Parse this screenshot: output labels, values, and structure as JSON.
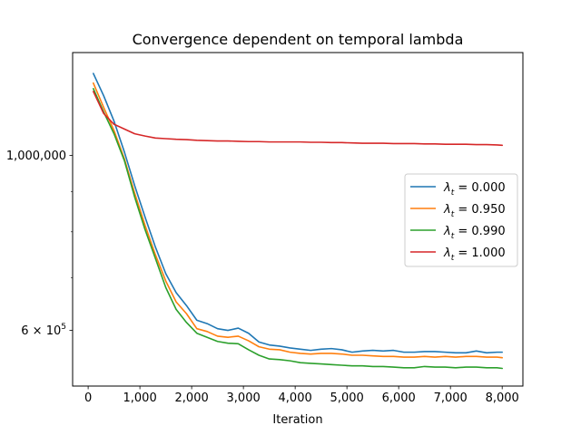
{
  "chart_data": {
    "type": "line",
    "title": "Convergence dependent on temporal lambda",
    "xlabel": "Iteration",
    "ylabel": "",
    "yscale": "log",
    "xlim": [
      -300,
      8400
    ],
    "ylim": [
      510000,
      1350000
    ],
    "xticks": [
      {
        "value": 0,
        "label": "0"
      },
      {
        "value": 1000,
        "label": "1,000"
      },
      {
        "value": 2000,
        "label": "2,000"
      },
      {
        "value": 3000,
        "label": "3,000"
      },
      {
        "value": 4000,
        "label": "4,000"
      },
      {
        "value": 5000,
        "label": "5,000"
      },
      {
        "value": 6000,
        "label": "6,000"
      },
      {
        "value": 7000,
        "label": "7,000"
      },
      {
        "value": 8000,
        "label": "8,000"
      }
    ],
    "yticks": [
      {
        "value": 600000,
        "label": "6 × 10^5",
        "base": "6 × 10",
        "exp": "5"
      },
      {
        "value": 1000000,
        "label": "1,000,000"
      }
    ],
    "yminor": [
      700000,
      800000,
      900000
    ],
    "grid": false,
    "legend_position": "center-right",
    "series": [
      {
        "name": "λt = 0.000",
        "name_main": "λ",
        "name_sub": "t",
        "name_value": " = 0.000",
        "color": "#1f77b4",
        "x": [
          100,
          300,
          500,
          700,
          900,
          1100,
          1300,
          1500,
          1700,
          1900,
          2100,
          2300,
          2500,
          2700,
          2900,
          3100,
          3300,
          3500,
          3700,
          3900,
          4100,
          4300,
          4500,
          4700,
          4900,
          5100,
          5300,
          5500,
          5700,
          5900,
          6100,
          6300,
          6500,
          6700,
          6900,
          7100,
          7300,
          7500,
          7700,
          7900,
          8000
        ],
        "y": [
          1270000,
          1190000,
          1105000,
          1010000,
          915000,
          835000,
          765000,
          708000,
          670000,
          645000,
          618000,
          612000,
          603000,
          600000,
          604000,
          595000,
          580000,
          575000,
          573000,
          570000,
          568000,
          566000,
          568000,
          569000,
          567000,
          563000,
          565000,
          566000,
          565000,
          566000,
          563000,
          563000,
          564000,
          564000,
          563000,
          562000,
          562000,
          565000,
          562000,
          563000,
          563000
        ]
      },
      {
        "name": "λt = 0.950",
        "name_main": "λ",
        "name_sub": "t",
        "name_value": " = 0.950",
        "color": "#ff7f0e",
        "x": [
          100,
          300,
          500,
          700,
          900,
          1100,
          1300,
          1500,
          1700,
          1900,
          2100,
          2300,
          2500,
          2700,
          2900,
          3100,
          3300,
          3500,
          3700,
          3900,
          4100,
          4300,
          4500,
          4700,
          4900,
          5100,
          5300,
          5500,
          5700,
          5900,
          6100,
          6300,
          6500,
          6700,
          6900,
          7100,
          7300,
          7500,
          7700,
          7900,
          8000
        ],
        "y": [
          1235000,
          1150000,
          1075000,
          990000,
          895000,
          815000,
          748000,
          693000,
          652000,
          630000,
          603000,
          598000,
          590000,
          588000,
          590000,
          582000,
          572000,
          568000,
          567000,
          563000,
          561000,
          560000,
          561000,
          561000,
          560000,
          558000,
          558000,
          557000,
          556000,
          556000,
          555000,
          555000,
          556000,
          555000,
          556000,
          555000,
          556000,
          556000,
          555000,
          555000,
          554000
        ]
      },
      {
        "name": "λt = 0.990",
        "name_main": "λ",
        "name_sub": "t",
        "name_value": " = 0.990",
        "color": "#2ca02c",
        "x": [
          100,
          300,
          500,
          700,
          900,
          1100,
          1300,
          1500,
          1700,
          1900,
          2100,
          2300,
          2500,
          2700,
          2900,
          3100,
          3300,
          3500,
          3700,
          3900,
          4100,
          4300,
          4500,
          4700,
          4900,
          5100,
          5300,
          5500,
          5700,
          5900,
          6100,
          6300,
          6500,
          6700,
          6900,
          7100,
          7300,
          7500,
          7700,
          7900,
          8000
        ],
        "y": [
          1215000,
          1135000,
          1065000,
          985000,
          885000,
          805000,
          740000,
          680000,
          638000,
          614000,
          595000,
          588000,
          581000,
          578000,
          577000,
          567000,
          558000,
          552000,
          551000,
          549000,
          546000,
          545000,
          544000,
          543000,
          542000,
          541000,
          541000,
          540000,
          540000,
          539000,
          538000,
          538000,
          540000,
          539000,
          539000,
          538000,
          539000,
          539000,
          538000,
          538000,
          537000
        ]
      },
      {
        "name": "λt = 1.000",
        "name_main": "λ",
        "name_sub": "t",
        "name_value": " = 1.000",
        "color": "#d62728",
        "x": [
          100,
          300,
          500,
          700,
          900,
          1100,
          1300,
          1500,
          1700,
          1900,
          2100,
          2300,
          2500,
          2700,
          2900,
          3100,
          3300,
          3500,
          3700,
          3900,
          4100,
          4300,
          4500,
          4700,
          4900,
          5100,
          5300,
          5500,
          5700,
          5900,
          6100,
          6300,
          6500,
          6700,
          6900,
          7100,
          7300,
          7500,
          7700,
          7900,
          8000
        ],
        "y": [
          1205000,
          1130000,
          1095000,
          1080000,
          1065000,
          1058000,
          1052000,
          1050000,
          1048000,
          1047000,
          1045000,
          1044000,
          1043000,
          1043000,
          1042000,
          1041000,
          1041000,
          1040000,
          1040000,
          1040000,
          1040000,
          1039000,
          1039000,
          1038000,
          1038000,
          1037000,
          1036000,
          1036000,
          1036000,
          1035000,
          1035000,
          1035000,
          1034000,
          1034000,
          1033000,
          1033000,
          1033000,
          1032000,
          1032000,
          1031000,
          1030000
        ]
      }
    ]
  }
}
